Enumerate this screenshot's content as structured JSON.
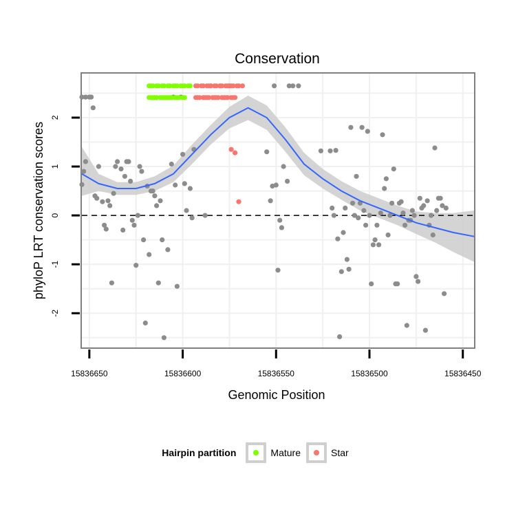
{
  "chart_data": {
    "type": "scatter",
    "title": "Conservation",
    "xlabel": "Genomic Position",
    "ylabel": "phyloP LRT conservation scores",
    "xlim": [
      15836654,
      15836444
    ],
    "ylim": [
      -2.7,
      2.9
    ],
    "x_reversed": true,
    "x_ticks": [
      15836650,
      15836600,
      15836550,
      15836500,
      15836450
    ],
    "y_ticks": [
      -2,
      -1,
      0,
      1,
      2
    ],
    "grid": true,
    "reference_line": {
      "y": 0,
      "style": "dashed"
    },
    "legend": {
      "title": "Hairpin partition",
      "position": "bottom",
      "entries": [
        {
          "name": "Mature",
          "color": "#7FFF00"
        },
        {
          "name": "Star",
          "color": "#F8766D"
        }
      ]
    },
    "colors": {
      "points": "#8c8c8c",
      "smooth": "#3366FF",
      "band": "#cccccc",
      "panel_border": "#7f7f7f"
    },
    "series": [
      {
        "name": "Mature",
        "color": "#7FFF00",
        "points": [
          [
            15836618,
            2.65
          ],
          [
            15836617,
            2.65
          ],
          [
            15836616,
            2.65
          ],
          [
            15836614,
            2.65
          ],
          [
            15836613,
            2.65
          ],
          [
            15836611,
            2.65
          ],
          [
            15836610,
            2.65
          ],
          [
            15836608,
            2.65
          ],
          [
            15836607,
            2.65
          ],
          [
            15836605,
            2.65
          ],
          [
            15836604,
            2.65
          ],
          [
            15836603,
            2.65
          ],
          [
            15836601,
            2.65
          ],
          [
            15836600,
            2.65
          ],
          [
            15836599,
            2.65
          ],
          [
            15836597,
            2.65
          ],
          [
            15836596,
            2.65
          ],
          [
            15836618,
            2.41
          ],
          [
            15836617,
            2.41
          ],
          [
            15836616,
            2.41
          ],
          [
            15836615,
            2.41
          ],
          [
            15836614,
            2.41
          ],
          [
            15836612,
            2.41
          ],
          [
            15836611,
            2.41
          ],
          [
            15836610,
            2.41
          ],
          [
            15836609,
            2.41
          ],
          [
            15836608,
            2.41
          ],
          [
            15836607,
            2.41
          ],
          [
            15836606,
            2.41
          ],
          [
            15836604,
            2.41
          ],
          [
            15836603,
            2.41
          ],
          [
            15836602,
            2.41
          ],
          [
            15836600,
            2.41
          ],
          [
            15836599,
            2.41
          ]
        ]
      },
      {
        "name": "Star",
        "color": "#F8766D",
        "points": [
          [
            15836593,
            2.65
          ],
          [
            15836592,
            2.65
          ],
          [
            15836590,
            2.65
          ],
          [
            15836589,
            2.65
          ],
          [
            15836587,
            2.65
          ],
          [
            15836586,
            2.65
          ],
          [
            15836585,
            2.65
          ],
          [
            15836583,
            2.65
          ],
          [
            15836582,
            2.65
          ],
          [
            15836580,
            2.65
          ],
          [
            15836579,
            2.65
          ],
          [
            15836577,
            2.65
          ],
          [
            15836576,
            2.65
          ],
          [
            15836574,
            2.65
          ],
          [
            15836573,
            2.65
          ],
          [
            15836571,
            2.65
          ],
          [
            15836570,
            2.65
          ],
          [
            15836568,
            2.65
          ],
          [
            15836593,
            2.41
          ],
          [
            15836592,
            2.41
          ],
          [
            15836591,
            2.41
          ],
          [
            15836589,
            2.41
          ],
          [
            15836588,
            2.41
          ],
          [
            15836587,
            2.41
          ],
          [
            15836586,
            2.41
          ],
          [
            15836584,
            2.41
          ],
          [
            15836583,
            2.41
          ],
          [
            15836582,
            2.41
          ],
          [
            15836581,
            2.41
          ],
          [
            15836579,
            2.41
          ],
          [
            15836578,
            2.41
          ],
          [
            15836577,
            2.41
          ],
          [
            15836576,
            2.41
          ],
          [
            15836574,
            2.41
          ],
          [
            15836573,
            2.41
          ],
          [
            15836572,
            2.41
          ],
          [
            15836574,
            1.35
          ],
          [
            15836572,
            1.28
          ],
          [
            15836570,
            0.28
          ]
        ]
      },
      {
        "name": "Other",
        "color": "#8c8c8c",
        "points": [
          [
            15836654,
            0.63
          ],
          [
            15836653,
            0.9
          ],
          [
            15836652,
            1.1
          ],
          [
            15836654,
            2.42
          ],
          [
            15836652,
            2.42
          ],
          [
            15836650,
            2.42
          ],
          [
            15836649,
            2.42
          ],
          [
            15836648,
            2.2
          ],
          [
            15836647,
            0.4
          ],
          [
            15836646,
            0.35
          ],
          [
            15836645,
            1.0
          ],
          [
            15836643,
            0.28
          ],
          [
            15836642,
            -0.2
          ],
          [
            15836641,
            -0.28
          ],
          [
            15836640,
            0.3
          ],
          [
            15836639,
            0.2
          ],
          [
            15836638,
            -1.38
          ],
          [
            15836637,
            0.45
          ],
          [
            15836636,
            1.0
          ],
          [
            15836635,
            1.1
          ],
          [
            15836633,
            0.95
          ],
          [
            15836632,
            -0.3
          ],
          [
            15836631,
            0.8
          ],
          [
            15836630,
            1.1
          ],
          [
            15836629,
            1.1
          ],
          [
            15836628,
            0.7
          ],
          [
            15836627,
            -0.1
          ],
          [
            15836626,
            -0.2
          ],
          [
            15836625,
            -1.02
          ],
          [
            15836624,
            0.0
          ],
          [
            15836623,
            1.0
          ],
          [
            15836622,
            0.9
          ],
          [
            15836621,
            -0.5
          ],
          [
            15836620,
            -2.2
          ],
          [
            15836619,
            0.6
          ],
          [
            15836618,
            -0.8
          ],
          [
            15836617,
            0.5
          ],
          [
            15836616,
            0.5
          ],
          [
            15836615,
            0.4
          ],
          [
            15836614,
            0.2
          ],
          [
            15836613,
            -1.38
          ],
          [
            15836612,
            0.3
          ],
          [
            15836611,
            -0.5
          ],
          [
            15836610,
            -2.5
          ],
          [
            15836608,
            -0.7
          ],
          [
            15836606,
            1.05
          ],
          [
            15836605,
            2.42
          ],
          [
            15836604,
            0.62
          ],
          [
            15836603,
            -1.45
          ],
          [
            15836601,
            2.42
          ],
          [
            15836600,
            1.25
          ],
          [
            15836599,
            0.65
          ],
          [
            15836598,
            0.1
          ],
          [
            15836596,
            0.55
          ],
          [
            15836595,
            -0.05
          ],
          [
            15836594,
            1.35
          ],
          [
            15836588,
            0.0
          ],
          [
            15836585,
            2.65
          ],
          [
            15836580,
            2.65
          ],
          [
            15836575,
            2.65
          ],
          [
            15836555,
            1.3
          ],
          [
            15836553,
            0.3
          ],
          [
            15836552,
            0.6
          ],
          [
            15836551,
            2.65
          ],
          [
            15836550,
            0.62
          ],
          [
            15836549,
            -1.12
          ],
          [
            15836548,
            -0.1
          ],
          [
            15836547,
            -0.25
          ],
          [
            15836546,
            1.0
          ],
          [
            15836544,
            0.7
          ],
          [
            15836543,
            2.65
          ],
          [
            15836541,
            2.65
          ],
          [
            15836538,
            2.65
          ],
          [
            15836526,
            1.32
          ],
          [
            15836521,
            1.32
          ],
          [
            15836520,
            0.15
          ],
          [
            15836519,
            0.0
          ],
          [
            15836518,
            1.33
          ],
          [
            15836517,
            -0.48
          ],
          [
            15836516,
            -2.48
          ],
          [
            15836515,
            -1.15
          ],
          [
            15836514,
            -0.35
          ],
          [
            15836513,
            0.15
          ],
          [
            15836512,
            -0.9
          ],
          [
            15836511,
            -1.1
          ],
          [
            15836510,
            1.8
          ],
          [
            15836509,
            0.25
          ],
          [
            15836508,
            0.0
          ],
          [
            15836507,
            0.8
          ],
          [
            15836506,
            -0.05
          ],
          [
            15836505,
            0.25
          ],
          [
            15836504,
            1.8
          ],
          [
            15836503,
            0.1
          ],
          [
            15836502,
            -0.2
          ],
          [
            15836501,
            1.72
          ],
          [
            15836500,
            0.0
          ],
          [
            15836499,
            -1.4
          ],
          [
            15836498,
            -0.6
          ],
          [
            15836497,
            -0.5
          ],
          [
            15836496,
            -0.2
          ],
          [
            15836495,
            -0.6
          ],
          [
            15836494,
            0.05
          ],
          [
            15836493,
            1.65
          ],
          [
            15836492,
            0.55
          ],
          [
            15836491,
            0.75
          ],
          [
            15836490,
            -0.4
          ],
          [
            15836489,
            0.0
          ],
          [
            15836488,
            0.25
          ],
          [
            15836487,
            0.95
          ],
          [
            15836486,
            -1.4
          ],
          [
            15836485,
            -1.4
          ],
          [
            15836484,
            0.25
          ],
          [
            15836483,
            0.28
          ],
          [
            15836482,
            0.05
          ],
          [
            15836481,
            -0.2
          ],
          [
            15836480,
            -2.25
          ],
          [
            15836479,
            -0.1
          ],
          [
            15836478,
            -0.1
          ],
          [
            15836477,
            0.1
          ],
          [
            15836476,
            0.0
          ],
          [
            15836475,
            -1.25
          ],
          [
            15836474,
            -1.35
          ],
          [
            15836473,
            0.35
          ],
          [
            15836472,
            0.15
          ],
          [
            15836471,
            0.2
          ],
          [
            15836470,
            -2.35
          ],
          [
            15836469,
            0.3
          ],
          [
            15836468,
            -0.2
          ],
          [
            15836467,
            0.0
          ],
          [
            15836466,
            -0.4
          ],
          [
            15836465,
            1.38
          ],
          [
            15836464,
            0.1
          ],
          [
            15836463,
            0.35
          ],
          [
            15836462,
            0.35
          ],
          [
            15836461,
            0.2
          ],
          [
            15836460,
            -1.6
          ],
          [
            15836459,
            0.15
          ]
        ]
      }
    ],
    "smooth_curve": {
      "x": [
        15836654,
        15836645,
        15836635,
        15836625,
        15836615,
        15836605,
        15836595,
        15836585,
        15836575,
        15836565,
        15836555,
        15836545,
        15836535,
        15836525,
        15836515,
        15836505,
        15836495,
        15836485,
        15836475,
        15836465,
        15836455,
        15836444
      ],
      "y": [
        0.85,
        0.65,
        0.55,
        0.55,
        0.65,
        0.85,
        1.25,
        1.65,
        2.0,
        2.2,
        2.0,
        1.55,
        1.05,
        0.75,
        0.5,
        0.3,
        0.15,
        0.0,
        -0.15,
        -0.25,
        -0.35,
        -0.43
      ],
      "lower": [
        0.4,
        0.5,
        0.42,
        0.42,
        0.5,
        0.68,
        1.05,
        1.45,
        1.78,
        1.95,
        1.75,
        1.3,
        0.82,
        0.55,
        0.32,
        0.1,
        -0.05,
        -0.2,
        -0.38,
        -0.55,
        -0.75,
        -0.95
      ],
      "upper": [
        1.4,
        0.85,
        0.68,
        0.68,
        0.8,
        1.02,
        1.45,
        1.85,
        2.22,
        2.45,
        2.25,
        1.8,
        1.28,
        0.95,
        0.7,
        0.5,
        0.35,
        0.2,
        0.08,
        0.05,
        0.05,
        0.1
      ]
    }
  }
}
